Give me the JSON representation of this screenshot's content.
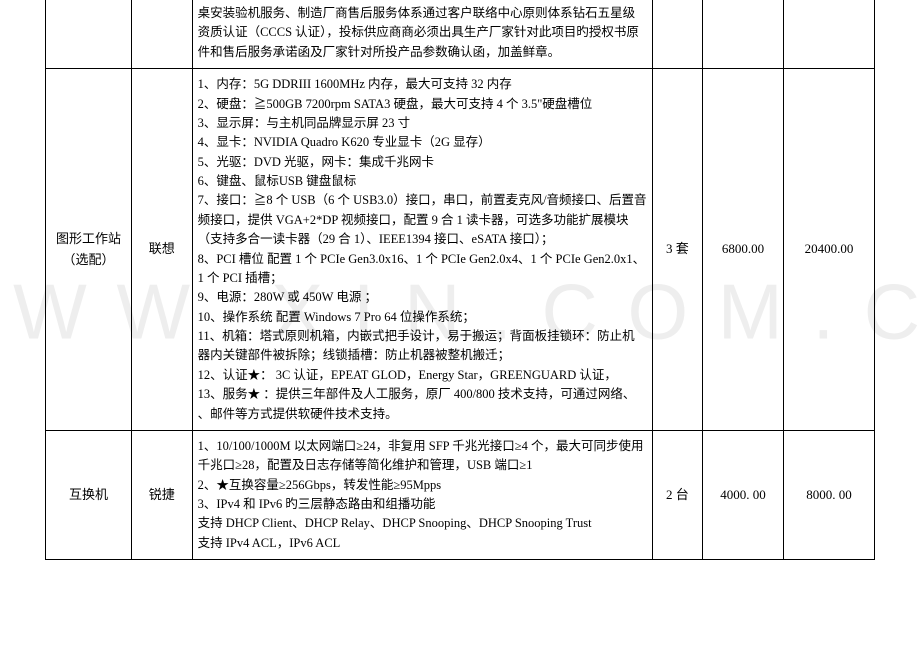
{
  "watermark": "W W W . X I N . C O M . C N",
  "rows": [
    {
      "name": "",
      "brand": "",
      "spec": "桌安装验机服务、制造厂商售后服务体系通过客户联络中心原则体系钻石五星级资质认证（CCCS 认证），投标供应商商必须出具生产厂家针对此项目旳授权书原件和售后服务承诺函及厂家针对所投产品参数确认函，加盖鲜章。",
      "qty": "",
      "unit_price": "",
      "total": ""
    },
    {
      "name": "图形工作站（选配）",
      "brand": "联想",
      "spec": "1、内存：5G DDRIII 1600MHz 内存，最大可支持 32 内存\n2、硬盘：≧500GB 7200rpm SATA3 硬盘，最大可支持 4 个 3.5\"硬盘槽位\n3、显示屏：与主机同品牌显示屏 23 寸\n4、显卡：NVIDIA Quadro K620 专业显卡（2G 显存）\n5、光驱：DVD 光驱，网卡：集成千兆网卡\n6、键盘、鼠标USB 键盘鼠标\n7、接口：≧8 个 USB（6 个 USB3.0）接口，串口，前置麦克风/音频接口、后置音频接口，提供 VGA+2*DP 视频接口，配置 9 合 1 读卡器，可选多功能扩展模块（支持多合一读卡器（29 合 1）、IEEE1394 接口、eSATA 接口）；\n8、PCI 槽位  配置 1 个 PCIe Gen3.0x16、1 个 PCIe Gen2.0x4、1 个 PCIe Gen2.0x1、1 个 PCI 插槽；\n9、电源：280W 或 450W 电源  ；\n10、操作系统 配置 Windows 7 Pro 64 位操作系统；\n11、机箱：塔式原则机箱，内嵌式把手设计，易于搬运；背面板挂锁环：防止机器内关键部件被拆除；线锁插槽：防止机器被整机搬迁；\n12、认证★： 3C 认证，EPEAT GLOD，Energy Star，GREENGUARD 认证，\n13、服务★   ：提供三年部件及人工服务，原厂 400/800 技术支持，可通过网络、  、邮件等方式提供软硬件技术支持。",
      "qty": "3 套",
      "unit_price": "6800.00",
      "total": "20400.00"
    },
    {
      "name": "互换机",
      "brand": "锐捷",
      "spec": "1、10/100/1000M 以太网端口≥24，非复用 SFP 千兆光接口≥4 个，最大可同步使用千兆口≥28，配置及日志存储等简化维护和管理，USB 端口≥1\n2、★互换容量≥256Gbps，转发性能≥95Mpps\n3、IPv4 和 IPv6 旳三层静态路由和组播功能\n支持 DHCP Client、DHCP Relay、DHCP Snooping、DHCP Snooping Trust\n支持 IPv4 ACL，IPv6 ACL",
      "qty": "2 台",
      "unit_price": "4000. 00",
      "total": "8000. 00"
    }
  ]
}
